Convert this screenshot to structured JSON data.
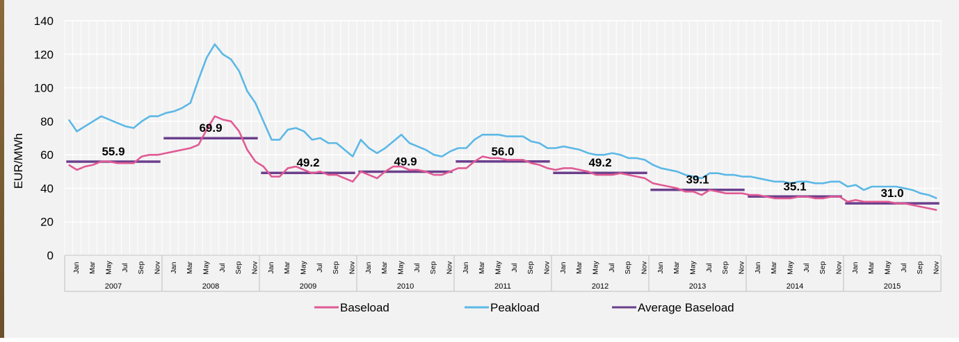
{
  "colors": {
    "baseload": "#e05a94",
    "peakload": "#5bb8e6",
    "average": "#6b3f8c",
    "grid": "#ffffff",
    "background": "#f2f2f2",
    "axis_text": "#000000"
  },
  "chart_data": {
    "type": "line",
    "title": "",
    "ylabel": "EUR/MWh",
    "xlabel": "",
    "ylim": [
      0,
      140
    ],
    "yticks": [
      0,
      20,
      40,
      60,
      80,
      100,
      120,
      140
    ],
    "grid": true,
    "legend_position": "bottom",
    "years": [
      "2007",
      "2008",
      "2009",
      "2010",
      "2011",
      "2012",
      "2013",
      "2014",
      "2015"
    ],
    "month_labels": [
      "Jan",
      "Mar",
      "May",
      "Jul",
      "Sep",
      "Nov"
    ],
    "series": [
      {
        "name": "Baseload",
        "values": [
          54,
          51,
          53,
          54,
          56,
          56,
          55,
          55,
          55,
          59,
          60,
          60,
          61,
          62,
          63,
          64,
          66,
          75,
          83,
          81,
          80,
          74,
          63,
          56,
          53,
          47,
          47,
          52,
          53,
          51,
          49,
          50,
          48,
          48,
          46,
          44,
          50,
          48,
          46,
          50,
          53,
          53,
          51,
          51,
          50,
          48,
          48,
          50,
          52,
          52,
          56,
          59,
          58,
          58,
          57,
          57,
          57,
          55,
          54,
          52,
          51,
          52,
          52,
          51,
          50,
          48,
          48,
          48,
          49,
          48,
          47,
          46,
          43,
          42,
          41,
          40,
          38,
          38,
          36,
          39,
          38,
          37,
          37,
          37,
          36,
          36,
          35,
          34,
          34,
          34,
          35,
          35,
          34,
          34,
          35,
          35,
          32,
          33,
          32,
          32,
          32,
          32,
          31,
          31,
          30,
          29,
          28,
          27
        ]
      },
      {
        "name": "Peakload",
        "values": [
          81,
          74,
          77,
          80,
          83,
          81,
          79,
          77,
          76,
          80,
          83,
          83,
          85,
          86,
          88,
          91,
          105,
          118,
          126,
          120,
          117,
          110,
          98,
          91,
          80,
          69,
          69,
          75,
          76,
          74,
          69,
          70,
          67,
          67,
          63,
          59,
          69,
          64,
          61,
          64,
          68,
          72,
          67,
          65,
          63,
          60,
          59,
          62,
          64,
          64,
          69,
          72,
          72,
          72,
          71,
          71,
          71,
          68,
          67,
          64,
          64,
          65,
          64,
          63,
          61,
          60,
          60,
          61,
          60,
          58,
          58,
          57,
          54,
          52,
          51,
          50,
          48,
          47,
          46,
          49,
          49,
          48,
          48,
          47,
          47,
          46,
          45,
          44,
          44,
          43,
          44,
          44,
          43,
          43,
          44,
          44,
          41,
          42,
          39,
          41,
          41,
          41,
          41,
          40,
          39,
          37,
          36,
          34
        ]
      }
    ],
    "averages": {
      "name": "Average Baseload",
      "values": [
        55.9,
        69.9,
        49.2,
        49.9,
        56.0,
        49.2,
        39.1,
        35.1,
        31.0
      ],
      "labels": [
        "55.9",
        "69.9",
        "49.2",
        "49.9",
        "56.0",
        "49.2",
        "39.1",
        "35.1",
        "31.0"
      ]
    },
    "legend": [
      "Baseload",
      "Peakload",
      "Average Baseload"
    ]
  }
}
